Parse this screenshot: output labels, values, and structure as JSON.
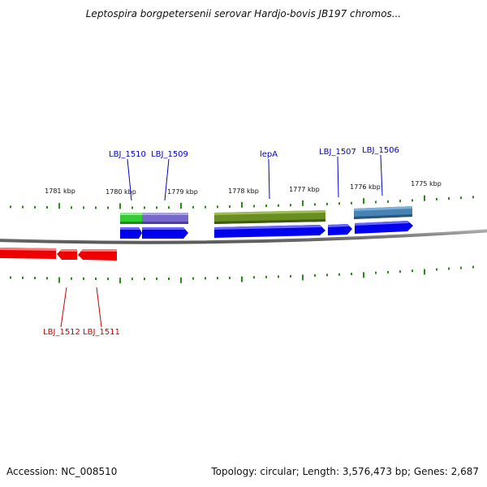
{
  "title": "Leptospira borgpetersenii serovar Hardjo-bovis JB197 chromos...",
  "footer": {
    "accession": "Accession: NC_008510",
    "summary": "Topology: circular; Length: 3,576,473 bp; Genes: 2,687"
  },
  "colors": {
    "backbone": "#808080",
    "ticks": "#2a8a1a",
    "forward_gene": "#0000ee",
    "reverse_gene": "#ee0000",
    "forward_label": "#0000cc",
    "reverse_label": "#cc0000"
  },
  "scale_labels": [
    "1781 kbp",
    "1780 kbp",
    "1779 kbp",
    "1778 kbp",
    "1777 kbp",
    "1776 kbp",
    "1775 kbp"
  ],
  "forward_labels": [
    "LBJ_1510",
    "LBJ_1509",
    "lepA",
    "LBJ_1507",
    "LBJ_1506"
  ],
  "reverse_labels": [
    "LBJ_1512",
    "LBJ_1511"
  ],
  "feature_bars": [
    {
      "gene": "LBJ_1510",
      "color": "#33cc33"
    },
    {
      "gene": "LBJ_1509",
      "color": "#7766cc"
    },
    {
      "gene": "lepA",
      "color": "#6b8e23"
    },
    {
      "gene": "LBJ_1506",
      "color": "#4682b4"
    }
  ]
}
